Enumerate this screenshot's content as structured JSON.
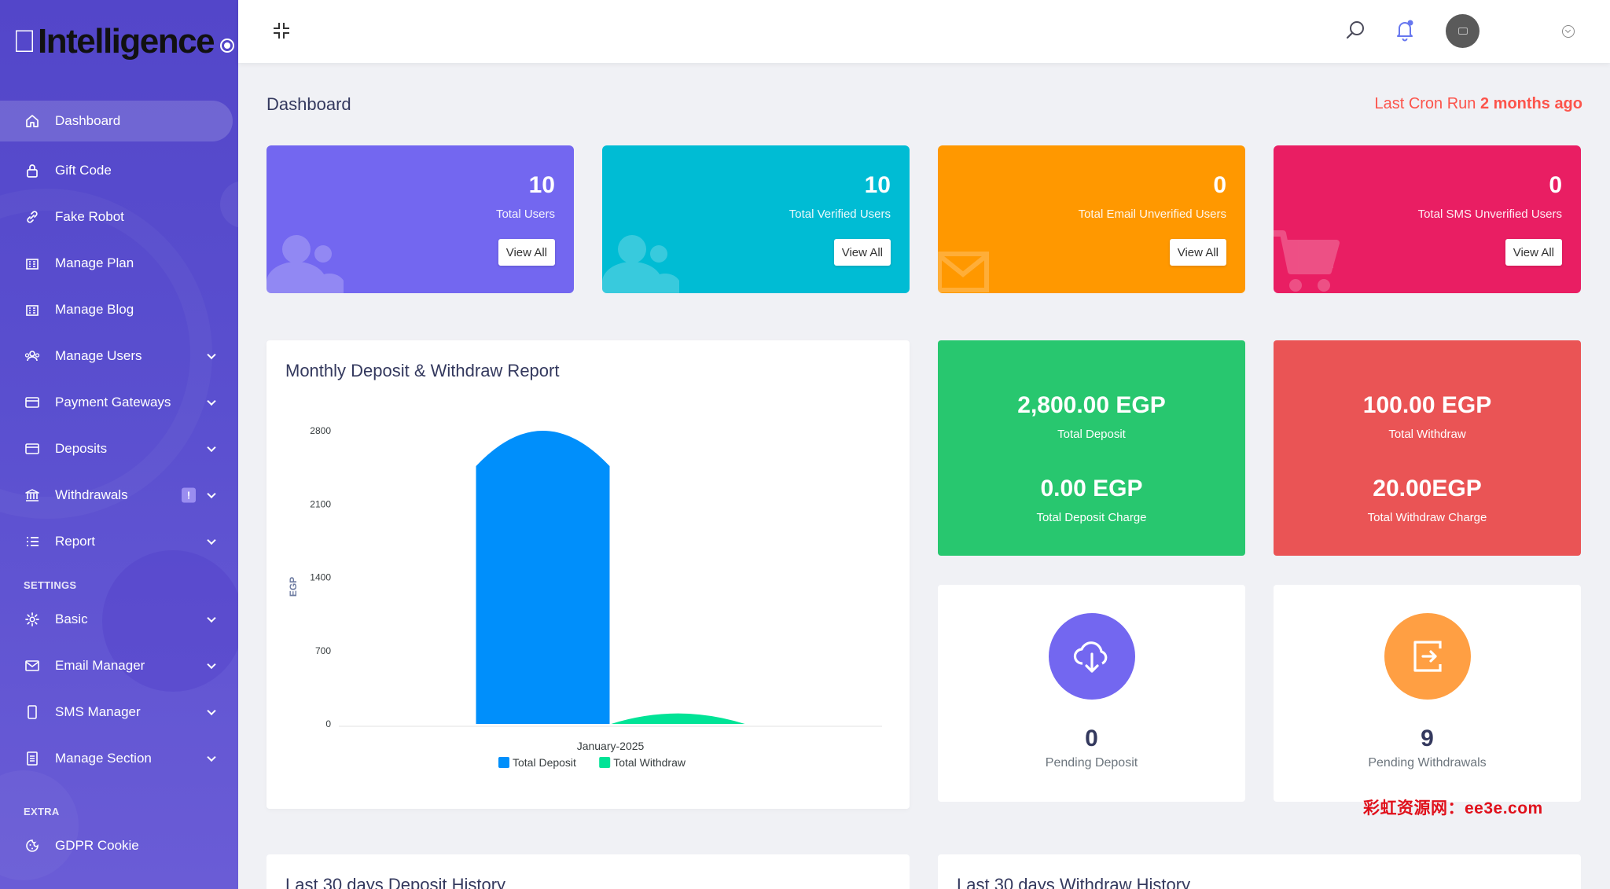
{
  "sidebar": {
    "logo_text": "Intelligence",
    "items": [
      {
        "label": "Dashboard",
        "icon": "home-icon"
      },
      {
        "label": "Gift Code",
        "icon": "lock-icon"
      },
      {
        "label": "Fake Robot",
        "icon": "link-icon"
      },
      {
        "label": "Manage Plan",
        "icon": "building-icon"
      },
      {
        "label": "Manage Blog",
        "icon": "building-icon"
      },
      {
        "label": "Manage Users",
        "icon": "users-icon"
      },
      {
        "label": "Payment Gateways",
        "icon": "credit-card-icon"
      },
      {
        "label": "Deposits",
        "icon": "credit-card-icon"
      },
      {
        "label": "Withdrawals",
        "icon": "bank-icon",
        "badge": "!"
      },
      {
        "label": "Report",
        "icon": "list-icon"
      }
    ],
    "settings_heading": "SETTINGS",
    "settings_items": [
      {
        "label": "Basic",
        "icon": "gear-icon"
      },
      {
        "label": "Email Manager",
        "icon": "envelope-icon"
      },
      {
        "label": "SMS Manager",
        "icon": "phone-icon"
      },
      {
        "label": "Manage Section",
        "icon": "file-icon"
      }
    ],
    "extra_heading": "EXTRA",
    "extra_items": [
      {
        "label": "GDPR Cookie",
        "icon": "cookie-icon"
      }
    ]
  },
  "header": {
    "page_title": "Dashboard",
    "cron_prefix": "Last Cron Run",
    "cron_value": "2 months ago"
  },
  "stats": [
    {
      "value": "10",
      "label": "Total Users",
      "button": "View All",
      "color": "#6777ef"
    },
    {
      "value": "10",
      "label": "Total Verified Users",
      "button": "View All",
      "color": "#00bcd4"
    },
    {
      "value": "0",
      "label": "Total Email Unverified Users",
      "button": "View All",
      "color": "#ff9800"
    },
    {
      "value": "0",
      "label": "Total SMS Unverified Users",
      "button": "View All",
      "color": "#e91e63"
    }
  ],
  "chart_panel": {
    "title": "Monthly Deposit & Withdraw Report"
  },
  "chart_data": {
    "type": "bar",
    "title": "Monthly Deposit & Withdraw Report",
    "categories": [
      "January-2025"
    ],
    "series": [
      {
        "name": "Total Deposit",
        "values": [
          2800
        ],
        "color": "#008ffb"
      },
      {
        "name": "Total Withdraw",
        "values": [
          100
        ],
        "color": "#00e396"
      }
    ],
    "ylabel": "EGP",
    "yticks": [
      0,
      700,
      1400,
      2100,
      2800
    ],
    "ylim": [
      0,
      2800
    ],
    "legend_position": "bottom"
  },
  "summary": {
    "deposit": {
      "amount": "2,800.00 EGP",
      "label": "Total Deposit",
      "charge": "0.00 EGP",
      "charge_label": "Total Deposit Charge",
      "color": "#28c76f"
    },
    "withdraw": {
      "amount": "100.00 EGP",
      "label": "Total Withdraw",
      "charge": "20.00EGP",
      "charge_label": "Total Withdraw Charge",
      "color": "#ea5455"
    }
  },
  "pending": {
    "deposit": {
      "value": "0",
      "label": "Pending Deposit",
      "color": "#7367f0"
    },
    "withdraw": {
      "value": "9",
      "label": "Pending Withdrawals",
      "color": "#ff9f43"
    }
  },
  "history": {
    "deposit_title": "Last 30 days Deposit History",
    "withdraw_title": "Last 30 days Withdraw History"
  },
  "watermark": "彩虹资源网：ee3e.com"
}
